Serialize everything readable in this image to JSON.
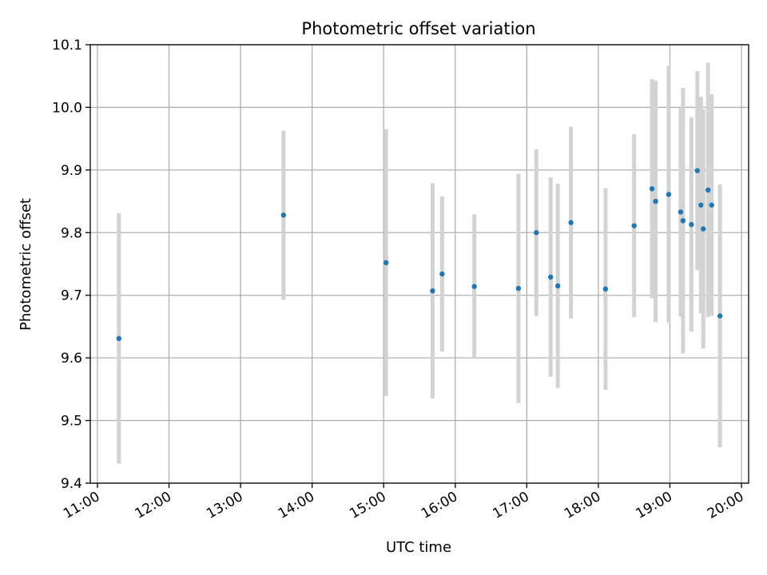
{
  "chart_data": {
    "type": "scatter",
    "title": "Photometric offset variation",
    "xlabel": "UTC time",
    "ylabel": "Photometric offset",
    "x_ticks": [
      "11:00",
      "12:00",
      "13:00",
      "14:00",
      "15:00",
      "16:00",
      "17:00",
      "18:00",
      "19:00",
      "20:00"
    ],
    "y_ticks": [
      "9.4",
      "9.5",
      "9.6",
      "9.7",
      "9.8",
      "9.9",
      "10.0",
      "10.1"
    ],
    "xlim": [
      "10:54",
      "20:06"
    ],
    "ylim": [
      9.4,
      10.1
    ],
    "grid": true,
    "colors": {
      "point": "#1f77b4",
      "errorbar": "#d3d3d3",
      "grid": "#b0b0b0"
    },
    "points": [
      {
        "x": "11:18",
        "y": 9.631,
        "err": 0.2
      },
      {
        "x": "13:36",
        "y": 9.828,
        "err": 0.135
      },
      {
        "x": "15:02",
        "y": 9.752,
        "err": 0.213
      },
      {
        "x": "15:41",
        "y": 9.707,
        "err": 0.172
      },
      {
        "x": "15:49",
        "y": 9.734,
        "err": 0.124
      },
      {
        "x": "16:16",
        "y": 9.714,
        "err": 0.115
      },
      {
        "x": "16:53",
        "y": 9.711,
        "err": 0.183
      },
      {
        "x": "17:08",
        "y": 9.8,
        "err": 0.133
      },
      {
        "x": "17:20",
        "y": 9.729,
        "err": 0.159
      },
      {
        "x": "17:26",
        "y": 9.715,
        "err": 0.163
      },
      {
        "x": "17:37",
        "y": 9.816,
        "err": 0.153
      },
      {
        "x": "18:06",
        "y": 9.71,
        "err": 0.161
      },
      {
        "x": "18:30",
        "y": 9.811,
        "err": 0.146
      },
      {
        "x": "18:45",
        "y": 9.87,
        "err": 0.175
      },
      {
        "x": "18:48",
        "y": 9.85,
        "err": 0.193
      },
      {
        "x": "18:59",
        "y": 9.861,
        "err": 0.205
      },
      {
        "x": "19:09",
        "y": 9.833,
        "err": 0.167
      },
      {
        "x": "19:11",
        "y": 9.819,
        "err": 0.212
      },
      {
        "x": "19:18",
        "y": 9.813,
        "err": 0.171
      },
      {
        "x": "19:23",
        "y": 9.899,
        "err": 0.159
      },
      {
        "x": "19:26",
        "y": 9.844,
        "err": 0.173
      },
      {
        "x": "19:28",
        "y": 9.806,
        "err": 0.191
      },
      {
        "x": "19:32",
        "y": 9.868,
        "err": 0.203
      },
      {
        "x": "19:35",
        "y": 9.844,
        "err": 0.177
      },
      {
        "x": "19:42",
        "y": 9.667,
        "err": 0.21
      }
    ]
  }
}
